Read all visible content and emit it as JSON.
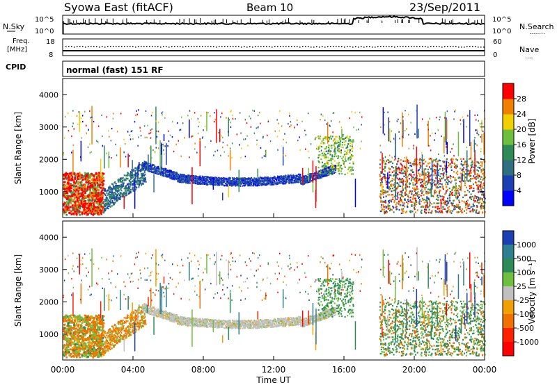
{
  "header": {
    "title": "Syowa East (fitACF)",
    "beam": "Beam 10",
    "date": "23/Sep/2011"
  },
  "strips": {
    "nsky_label": "N.Sky",
    "nsearch_label": "N.Search",
    "nsearch_dots": "........",
    "freq_label_1": "Freq.",
    "freq_label_2": "[MHz]",
    "nave_label": "Nave",
    "nave_dots": "....",
    "cpid_label": "CPID",
    "cpid_text": "normal (fast) 151 RF",
    "nsky_ticks": [
      "10^5",
      "10^0"
    ],
    "nsearch_ticks": [
      "10^5",
      "10^0"
    ],
    "freq_ticks": [
      "18",
      "8"
    ],
    "nave_ticks": [
      "60",
      "0"
    ]
  },
  "chart_data": [
    {
      "type": "heatmap",
      "name": "power",
      "ylabel": "Slant Range [km]",
      "ylim": [
        200,
        4500
      ],
      "yticks": [
        "1000",
        "2000",
        "3000",
        "4000"
      ],
      "xlim": [
        0,
        24
      ],
      "colorbar": {
        "label": "Power [dB]",
        "ticks": [
          "4",
          "8",
          "12",
          "16",
          "20",
          "24",
          "28"
        ],
        "colors": [
          "#0000ff",
          "#1c3fb4",
          "#2f6f7f",
          "#2e8b57",
          "#6fbf3f",
          "#f0d000",
          "#f08000",
          "#ff0000"
        ]
      }
    },
    {
      "type": "heatmap",
      "name": "velocity",
      "ylabel": "Slant Range [km]",
      "ylim": [
        200,
        4500
      ],
      "yticks": [
        "1000",
        "2000",
        "3000",
        "4000"
      ],
      "xlim": [
        0,
        24
      ],
      "xlabel": "Time UT",
      "xticks": [
        "00:00",
        "04:00",
        "08:00",
        "12:00",
        "16:00",
        "20:00",
        "00:00"
      ],
      "colorbar": {
        "label": "Velocity [m s⁻¹]",
        "ticks": [
          "1000",
          "500",
          "100",
          "25",
          "-25",
          "-100",
          "-500",
          "-1000"
        ],
        "colors": [
          "#1c3fb4",
          "#2e7f8f",
          "#2e8b57",
          "#6fc040",
          "#c0c0c0",
          "#f0a000",
          "#f07000",
          "#ff2000",
          "#ff0000"
        ]
      }
    }
  ]
}
